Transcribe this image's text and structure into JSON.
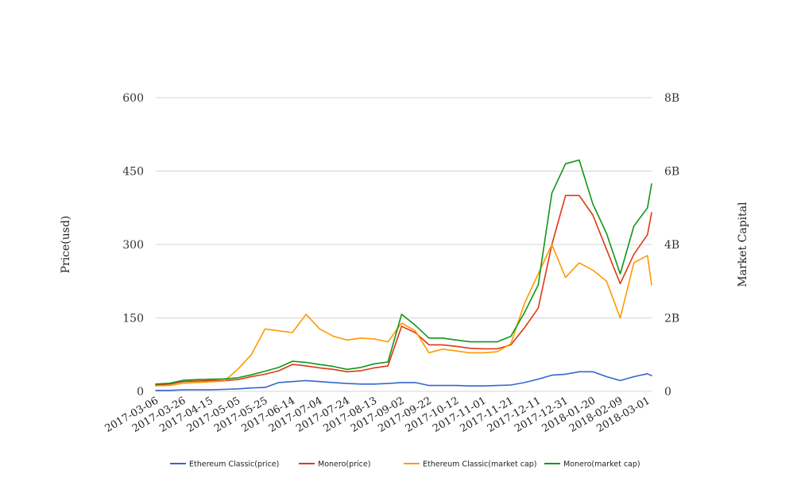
{
  "chart_data": {
    "type": "line",
    "title": "",
    "ylabel": "Price(usd)",
    "y2label": "Market Capital",
    "ylim": [
      0,
      600
    ],
    "y2lim": [
      0,
      8000000000
    ],
    "yticks": [
      "0",
      "150",
      "300",
      "450",
      "600"
    ],
    "y2ticks": [
      "0",
      "2B",
      "4B",
      "6B",
      "8B"
    ],
    "grid": true,
    "legend_position": "bottom",
    "x_tick_labels": [
      "2017-03-06",
      "2017-03-26",
      "2017-04-15",
      "2017-05-05",
      "2017-05-25",
      "2017-06-14",
      "2017-07-04",
      "2017-07-24",
      "2017-08-13",
      "2017-09-02",
      "2017-09-22",
      "2017-10-12",
      "2017-11-01",
      "2017-11-21",
      "2017-12-11",
      "2017-12-31",
      "2018-01-20",
      "2018-02-09",
      "2018-03-01"
    ],
    "x": [
      "2017-03-06",
      "2017-03-16",
      "2017-03-26",
      "2017-04-05",
      "2017-04-15",
      "2017-04-25",
      "2017-05-05",
      "2017-05-15",
      "2017-05-25",
      "2017-06-04",
      "2017-06-14",
      "2017-06-24",
      "2017-07-04",
      "2017-07-14",
      "2017-07-24",
      "2017-08-03",
      "2017-08-13",
      "2017-08-23",
      "2017-09-02",
      "2017-09-12",
      "2017-09-22",
      "2017-10-02",
      "2017-10-12",
      "2017-10-22",
      "2017-11-01",
      "2017-11-11",
      "2017-11-21",
      "2017-12-01",
      "2017-12-11",
      "2017-12-21",
      "2017-12-31",
      "2018-01-10",
      "2018-01-20",
      "2018-01-30",
      "2018-02-09",
      "2018-02-19",
      "2018-03-01",
      "2018-03-04"
    ],
    "series": [
      {
        "name": "Ethereum Classic(price)",
        "axis": "left",
        "color": "#3366cc",
        "values": [
          2,
          2,
          3,
          3,
          3,
          4,
          5,
          7,
          8,
          18,
          20,
          22,
          20,
          18,
          16,
          15,
          15,
          16,
          18,
          18,
          12,
          12,
          12,
          11,
          11,
          12,
          13,
          18,
          25,
          33,
          35,
          40,
          40,
          30,
          22,
          30,
          36,
          32
        ]
      },
      {
        "name": "Monero(price)",
        "axis": "left",
        "color": "#dc3912",
        "values": [
          13,
          15,
          20,
          21,
          22,
          22,
          24,
          30,
          35,
          42,
          55,
          52,
          48,
          45,
          40,
          42,
          48,
          52,
          133,
          120,
          95,
          95,
          92,
          88,
          87,
          87,
          95,
          130,
          170,
          300,
          400,
          400,
          360,
          290,
          220,
          280,
          320,
          365
        ]
      },
      {
        "name": "Ethereum Classic(market cap)",
        "axis": "right",
        "color": "#ff9900",
        "values": [
          150000000,
          160000000,
          220000000,
          240000000,
          260000000,
          280000000,
          600000000,
          1000000000,
          1700000000,
          1650000000,
          1600000000,
          2100000000,
          1700000000,
          1500000000,
          1400000000,
          1450000000,
          1430000000,
          1350000000,
          1860000000,
          1650000000,
          1050000000,
          1150000000,
          1100000000,
          1050000000,
          1050000000,
          1080000000,
          1300000000,
          2400000000,
          3200000000,
          4000000000,
          3100000000,
          3500000000,
          3300000000,
          3000000000,
          2000000000,
          3500000000,
          3700000000,
          2900000000
        ]
      },
      {
        "name": "Monero(market cap)",
        "axis": "right",
        "color": "#109618",
        "values": [
          200000000,
          220000000,
          300000000,
          320000000,
          330000000,
          340000000,
          370000000,
          450000000,
          550000000,
          650000000,
          820000000,
          790000000,
          730000000,
          680000000,
          600000000,
          650000000,
          750000000,
          800000000,
          2100000000,
          1800000000,
          1450000000,
          1450000000,
          1400000000,
          1350000000,
          1350000000,
          1350000000,
          1500000000,
          2150000000,
          2900000000,
          5400000000,
          6200000000,
          6300000000,
          5100000000,
          4300000000,
          3200000000,
          4500000000,
          5000000000,
          5650000000
        ]
      }
    ]
  }
}
